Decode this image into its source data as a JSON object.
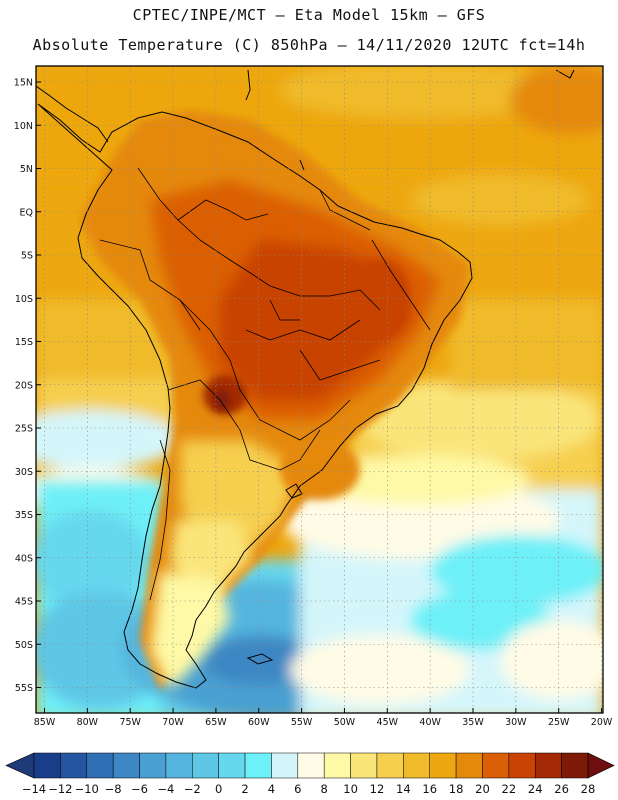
{
  "header": {
    "title_line1": "CPTEC/INPE/MCT –  Eta Model 15km – GFS",
    "title_line2": "Absolute Temperature (C) 850hPa – 14/11/2020 12UTC fct=14h"
  },
  "map": {
    "region": "South America",
    "lat_ticks": [
      "15N",
      "10N",
      "5N",
      "EQ",
      "5S",
      "10S",
      "15S",
      "20S",
      "25S",
      "30S",
      "35S",
      "40S",
      "45S",
      "50S",
      "55S"
    ],
    "lon_ticks": [
      "85W",
      "80W",
      "75W",
      "70W",
      "65W",
      "60W",
      "55W",
      "50W",
      "45W",
      "40W",
      "35W",
      "30W",
      "25W",
      "20W"
    ]
  },
  "colorbar": {
    "labels": [
      "-14",
      "-12",
      "-10",
      "-8",
      "-6",
      "-4",
      "-2",
      "0",
      "2",
      "4",
      "6",
      "8",
      "10",
      "12",
      "14",
      "16",
      "18",
      "20",
      "22",
      "24",
      "26",
      "28"
    ],
    "colors": [
      "#1a3d8a",
      "#2555a0",
      "#2f6fb3",
      "#3d87c4",
      "#4aa0d2",
      "#55b5de",
      "#5fc7e6",
      "#66d8ee",
      "#6ef0f8",
      "#d4f6fb",
      "#fffbe6",
      "#fef9a6",
      "#fae57a",
      "#f6cf4f",
      "#f0bb2a",
      "#eda711",
      "#e5890c",
      "#db5f06",
      "#c84304",
      "#a32a04",
      "#7e1a08"
    ],
    "under_color": "#1f3a78",
    "over_color": "#6e0e10"
  }
}
